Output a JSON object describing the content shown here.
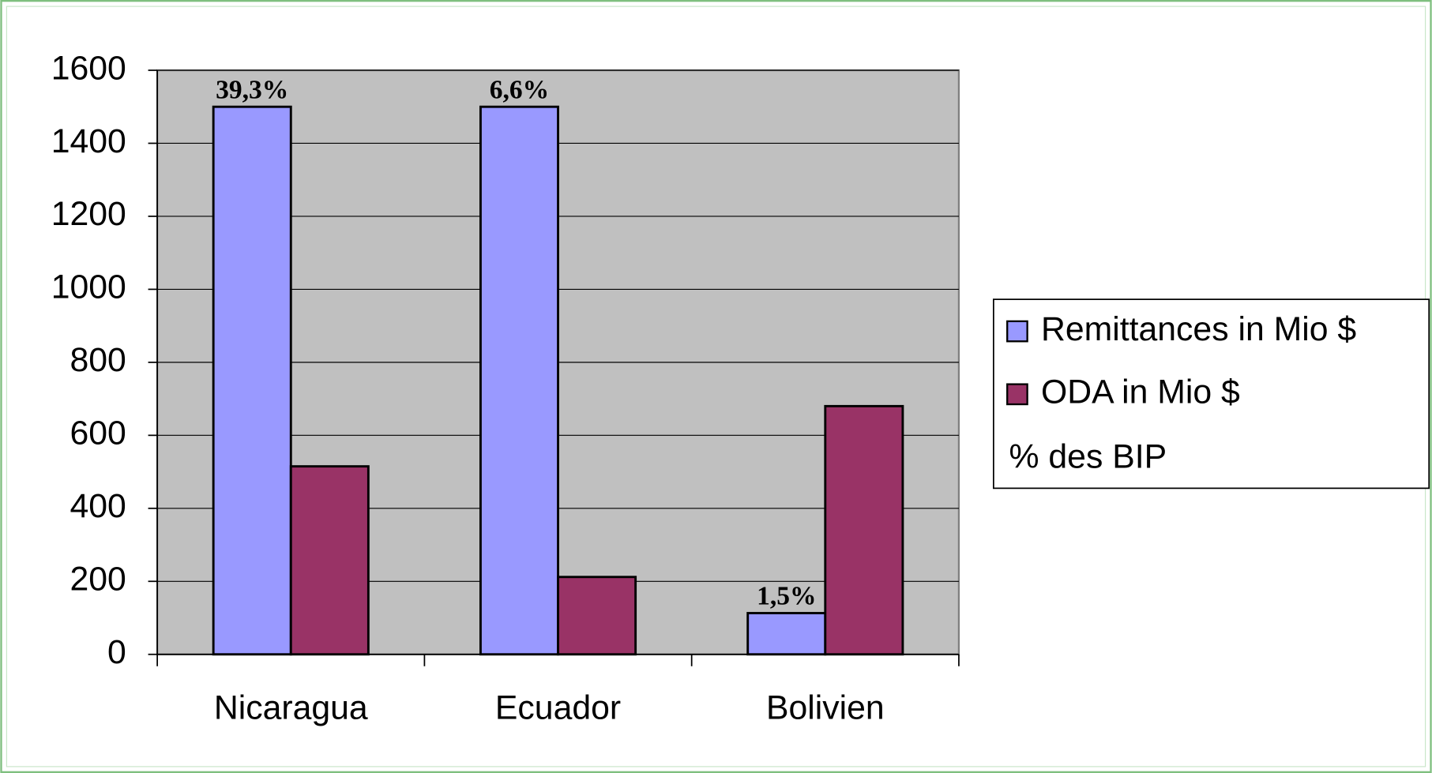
{
  "chart_data": {
    "type": "bar",
    "categories": [
      "Nicaragua",
      "Ecuador",
      "Bolivien"
    ],
    "series": [
      {
        "name": "Remittances in Mio $",
        "color": "#9999ff",
        "values": [
          1500,
          1500,
          113
        ]
      },
      {
        "name": "ODA in Mio $",
        "color": "#993366",
        "values": [
          515,
          212,
          680
        ]
      },
      {
        "name": "% des BIP",
        "type": "label",
        "values": [
          39.3,
          6.6,
          1.5
        ],
        "value_labels": [
          "39,3%",
          "6,6%",
          "1,5%"
        ]
      }
    ],
    "ylim": [
      0,
      1600
    ],
    "yticks": [
      0,
      200,
      400,
      600,
      800,
      1000,
      1200,
      1400,
      1600
    ],
    "grid": true,
    "legend": "right"
  }
}
